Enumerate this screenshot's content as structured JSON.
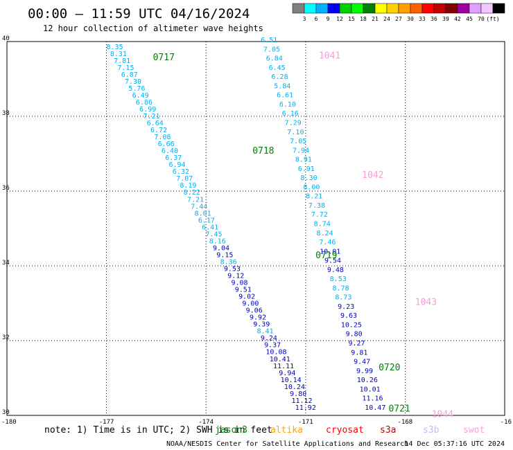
{
  "chart_data": {
    "type": "scatter",
    "title": "00:00 – 11:59 UTC 04/16/2024",
    "subtitle": "12 hour collection of altimeter wave heights",
    "x_ticks": [
      "-180",
      "-177",
      "-174",
      "-171",
      "-168",
      "-16"
    ],
    "y_ticks": [
      "40",
      "38",
      "36",
      "34",
      "32",
      "30"
    ],
    "xlim": [
      -180,
      -165
    ],
    "ylim": [
      30,
      40
    ],
    "grid": true,
    "legend": {
      "colors": [
        "#808080",
        "#00ffff",
        "#00b0ff",
        "#0000ff",
        "#00d000",
        "#00ff00",
        "#008000",
        "#ffff00",
        "#ffd000",
        "#ffa000",
        "#ff6000",
        "#ff0000",
        "#c00000",
        "#800000",
        "#a000a0",
        "#e0a0ff",
        "#f0c8ff",
        "#000000"
      ],
      "labels": [
        "3",
        "6",
        "9",
        "12",
        "15",
        "18",
        "21",
        "24",
        "27",
        "30",
        "33",
        "36",
        "39",
        "42",
        "45",
        "70",
        "(ft)"
      ]
    },
    "passes": [
      {
        "label": "0717",
        "color": "#008000",
        "x": -175.6,
        "y": 39.5
      },
      {
        "label": "0718",
        "color": "#008000",
        "x": -172.6,
        "y": 37.0
      },
      {
        "label": "0719",
        "color": "#008000",
        "x": -170.7,
        "y": 34.2
      },
      {
        "label": "0720",
        "color": "#008000",
        "x": -168.8,
        "y": 31.2
      },
      {
        "label": "0721",
        "color": "#008000",
        "x": -168.5,
        "y": 30.1
      },
      {
        "label": "1041",
        "color": "#ff99dd",
        "x": -170.6,
        "y": 39.55
      },
      {
        "label": "1042",
        "color": "#ff99dd",
        "x": -169.3,
        "y": 36.35
      },
      {
        "label": "1043",
        "color": "#ff99dd",
        "x": -167.7,
        "y": 32.95
      },
      {
        "label": "1044",
        "color": "#ff99dd",
        "x": -167.2,
        "y": 29.95
      }
    ],
    "series": [
      {
        "start": [
          -176.75,
          39.8
        ],
        "end": [
          -171.0,
          30.15
        ],
        "values": [
          "8.35",
          "8.31",
          "7.81",
          "7.15",
          "6.87",
          "7.30",
          "5.76",
          "6.49",
          "6.86",
          "6.99",
          "7.21",
          "6.64",
          "6.72",
          "7.08",
          "6.66",
          "6.40",
          "6.37",
          "6.94",
          "6.32",
          "7.07",
          "8.19",
          "8.22",
          "7.21",
          "7.44",
          "8.01",
          "6.17",
          "6.41",
          "7.45",
          "8.16",
          "9.04",
          "9.15",
          "8.36",
          "9.53",
          "9.12",
          "9.08",
          "9.51",
          "9.02",
          "9.00",
          "9.06",
          "9.92",
          "9.39",
          "8.41",
          "9.24",
          "9.37",
          "10.08",
          "10.41",
          "11.11",
          "9.94",
          "10.14",
          "10.24",
          "9.80",
          "11.12",
          "11.92"
        ]
      },
      {
        "start": [
          -172.1,
          39.98
        ],
        "end": [
          -168.9,
          30.15
        ],
        "values": [
          "6.51",
          "7.05",
          "6.84",
          "6.45",
          "6.28",
          "5.84",
          "6.61",
          "6.10",
          "6.16",
          "7.29",
          "7.10",
          "7.05",
          "7.94",
          "8.91",
          "6.91",
          "8.30",
          "8.00",
          "8.21",
          "7.38",
          "7.72",
          "8.74",
          "8.24",
          "7.46",
          "10.01",
          "9.54",
          "9.48",
          "8.53",
          "8.78",
          "8.73",
          "9.23",
          "9.63",
          "10.25",
          "9.80",
          "9.27",
          "9.81",
          "9.47",
          "9.99",
          "10.26",
          "10.01",
          "11.16",
          "10.47"
        ]
      }
    ],
    "note": "note:  1) Time is in UTC; 2) SWH is in feet",
    "satellites": [
      {
        "name": "jason3",
        "color": "#008000"
      },
      {
        "name": "altika",
        "color": "#ffa000"
      },
      {
        "name": "cryosat",
        "color": "#ff0000"
      },
      {
        "name": "s3a",
        "color": "#c00000"
      },
      {
        "name": "s3b",
        "color": "#c8b4ff"
      },
      {
        "name": "swot",
        "color": "#ff99dd"
      }
    ],
    "footer_left": "NOAA/NESDIS Center for Satellite Applications and Research",
    "footer_right": "14 Dec 05:37:16 UTC 2024"
  }
}
